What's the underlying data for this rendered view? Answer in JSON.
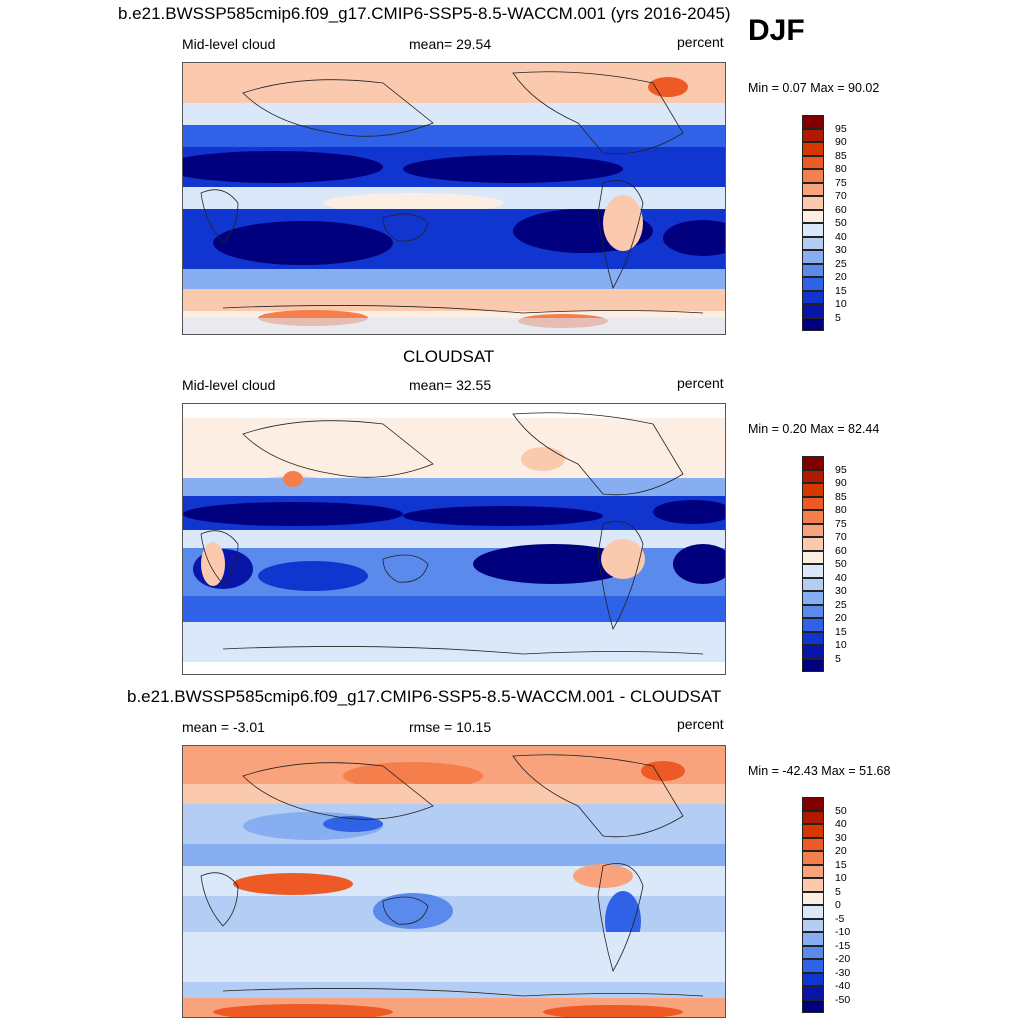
{
  "season": "DJF",
  "panels": [
    {
      "title": "b.e21.BWSSP585cmip6.f09_g17.CMIP6-SSP5-8.5-WACCM.001 (yrs 2016-2045)",
      "left_label": "Mid-level cloud",
      "center_label": "mean=  29.54",
      "right_label": "percent",
      "minmax": "Min =   0.07 Max =  90.02",
      "colorbar_labels": [
        "95",
        "90",
        "85",
        "80",
        "75",
        "70",
        "60",
        "50",
        "40",
        "30",
        "25",
        "20",
        "15",
        "10",
        "5"
      ]
    },
    {
      "title": "CLOUDSAT",
      "left_label": "Mid-level cloud",
      "center_label": "mean=  32.55",
      "right_label": "percent",
      "minmax": "Min =   0.20 Max =  82.44",
      "colorbar_labels": [
        "95",
        "90",
        "85",
        "80",
        "75",
        "70",
        "60",
        "50",
        "40",
        "30",
        "25",
        "20",
        "15",
        "10",
        "5"
      ]
    },
    {
      "title": "b.e21.BWSSP585cmip6.f09_g17.CMIP6-SSP5-8.5-WACCM.001 - CLOUDSAT",
      "left_label": "mean =  -3.01",
      "center_label": "rmse =  10.15",
      "right_label": "percent",
      "minmax": "Min = -42.43 Max =  51.68",
      "colorbar_labels": [
        "50",
        "40",
        "30",
        "20",
        "15",
        "10",
        "5",
        "0",
        "-5",
        "-10",
        "-15",
        "-20",
        "-30",
        "-40",
        "-50"
      ]
    }
  ],
  "colors": {
    "scale": [
      "#800000",
      "#b01a00",
      "#d63800",
      "#ee5a26",
      "#f57e4d",
      "#f9a37c",
      "#fbc9ad",
      "#fdeee4",
      "#dbe8f9",
      "#b3cdf4",
      "#86aef0",
      "#5a8aec",
      "#2f62e6",
      "#1136cf",
      "#0815a8",
      "#00007f"
    ]
  },
  "chart_data": [
    {
      "type": "heatmap",
      "title": "b.e21.BWSSP585cmip6.f09_g17.CMIP6-SSP5-8.5-WACCM.001 (yrs 2016-2045)",
      "variable": "Mid-level cloud",
      "units": "percent",
      "mean": 29.54,
      "min": 0.07,
      "max": 90.02,
      "levels": [
        5,
        10,
        15,
        20,
        25,
        30,
        40,
        50,
        60,
        70,
        75,
        80,
        85,
        90,
        95
      ]
    },
    {
      "type": "heatmap",
      "title": "CLOUDSAT",
      "variable": "Mid-level cloud",
      "units": "percent",
      "mean": 32.55,
      "min": 0.2,
      "max": 82.44,
      "levels": [
        5,
        10,
        15,
        20,
        25,
        30,
        40,
        50,
        60,
        70,
        75,
        80,
        85,
        90,
        95
      ]
    },
    {
      "type": "heatmap",
      "title": "b.e21.BWSSP585cmip6.f09_g17.CMIP6-SSP5-8.5-WACCM.001 - CLOUDSAT",
      "units": "percent",
      "mean": -3.01,
      "rmse": 10.15,
      "min": -42.43,
      "max": 51.68,
      "levels": [
        -50,
        -40,
        -30,
        -20,
        -15,
        -10,
        -5,
        0,
        5,
        10,
        15,
        20,
        30,
        40,
        50
      ]
    }
  ]
}
